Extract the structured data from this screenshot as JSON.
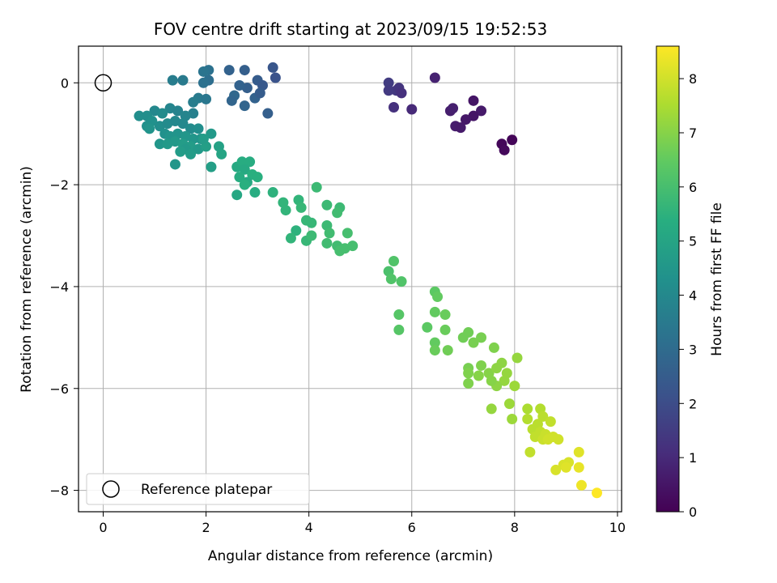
{
  "chart_data": {
    "type": "scatter",
    "title": "FOV centre drift starting at 2023/09/15 19:52:53",
    "xlabel": "Angular distance from reference (arcmin)",
    "ylabel": "Rotation from reference (arcmin)",
    "xlim": [
      -0.48,
      10.08
    ],
    "ylim": [
      -8.42,
      0.72
    ],
    "xticks": [
      0,
      2,
      4,
      6,
      8,
      10
    ],
    "yticks": [
      0,
      -2,
      -4,
      -6,
      -8
    ],
    "grid": true,
    "legend": {
      "position": "lower-left",
      "entries": [
        "Reference platepar"
      ]
    },
    "reference_point": {
      "x": 0,
      "y": 0,
      "label": "Reference platepar"
    },
    "colorbar": {
      "label": "Hours from first FF file",
      "range": [
        0,
        8.6
      ],
      "ticks": [
        0,
        1,
        2,
        3,
        4,
        5,
        6,
        7,
        8
      ],
      "colormap": "viridis"
    },
    "points": [
      {
        "x": 6.45,
        "y": 0.1,
        "h": 0.8
      },
      {
        "x": 5.55,
        "y": 0.0,
        "h": 1.5
      },
      {
        "x": 5.7,
        "y": -0.15,
        "h": 1.4
      },
      {
        "x": 5.75,
        "y": -0.1,
        "h": 1.3
      },
      {
        "x": 5.8,
        "y": -0.2,
        "h": 1.2
      },
      {
        "x": 5.55,
        "y": -0.15,
        "h": 1.45
      },
      {
        "x": 5.65,
        "y": -0.48,
        "h": 1.2
      },
      {
        "x": 6.0,
        "y": -0.52,
        "h": 1.0
      },
      {
        "x": 6.75,
        "y": -0.55,
        "h": 0.7
      },
      {
        "x": 6.8,
        "y": -0.5,
        "h": 0.75
      },
      {
        "x": 7.2,
        "y": -0.35,
        "h": 0.5
      },
      {
        "x": 7.35,
        "y": -0.55,
        "h": 0.6
      },
      {
        "x": 7.2,
        "y": -0.65,
        "h": 0.5
      },
      {
        "x": 7.05,
        "y": -0.72,
        "h": 0.55
      },
      {
        "x": 6.85,
        "y": -0.85,
        "h": 0.65
      },
      {
        "x": 6.95,
        "y": -0.88,
        "h": 0.6
      },
      {
        "x": 7.75,
        "y": -1.2,
        "h": 0.15
      },
      {
        "x": 7.95,
        "y": -1.12,
        "h": 0.1
      },
      {
        "x": 7.8,
        "y": -1.32,
        "h": 0.2
      },
      {
        "x": 2.45,
        "y": 0.25,
        "h": 2.7
      },
      {
        "x": 2.75,
        "y": 0.25,
        "h": 2.6
      },
      {
        "x": 3.3,
        "y": 0.3,
        "h": 2.3
      },
      {
        "x": 3.35,
        "y": 0.1,
        "h": 2.2
      },
      {
        "x": 3.0,
        "y": 0.05,
        "h": 2.5
      },
      {
        "x": 3.1,
        "y": -0.05,
        "h": 2.4
      },
      {
        "x": 2.8,
        "y": -0.1,
        "h": 2.6
      },
      {
        "x": 2.65,
        "y": -0.05,
        "h": 2.7
      },
      {
        "x": 2.55,
        "y": -0.25,
        "h": 2.9
      },
      {
        "x": 2.5,
        "y": -0.35,
        "h": 2.8
      },
      {
        "x": 2.75,
        "y": -0.45,
        "h": 2.8
      },
      {
        "x": 2.95,
        "y": -0.3,
        "h": 2.7
      },
      {
        "x": 3.2,
        "y": -0.6,
        "h": 2.6
      },
      {
        "x": 3.05,
        "y": -0.2,
        "h": 2.5
      },
      {
        "x": 2.05,
        "y": 0.25,
        "h": 3.2
      },
      {
        "x": 1.95,
        "y": 0.22,
        "h": 3.3
      },
      {
        "x": 2.05,
        "y": 0.05,
        "h": 3.1
      },
      {
        "x": 1.95,
        "y": 0.0,
        "h": 3.2
      },
      {
        "x": 1.35,
        "y": 0.05,
        "h": 3.6
      },
      {
        "x": 1.55,
        "y": 0.05,
        "h": 3.5
      },
      {
        "x": 1.85,
        "y": -0.3,
        "h": 3.5
      },
      {
        "x": 2.0,
        "y": -0.32,
        "h": 3.4
      },
      {
        "x": 1.75,
        "y": -0.38,
        "h": 3.6
      },
      {
        "x": 1.3,
        "y": -0.5,
        "h": 3.9
      },
      {
        "x": 1.45,
        "y": -0.55,
        "h": 3.8
      },
      {
        "x": 1.75,
        "y": -0.6,
        "h": 3.7
      },
      {
        "x": 1.6,
        "y": -0.65,
        "h": 3.9
      },
      {
        "x": 1.0,
        "y": -0.55,
        "h": 4.0
      },
      {
        "x": 1.15,
        "y": -0.6,
        "h": 4.1
      },
      {
        "x": 0.7,
        "y": -0.65,
        "h": 4.2
      },
      {
        "x": 0.85,
        "y": -0.65,
        "h": 4.2
      },
      {
        "x": 0.95,
        "y": -0.75,
        "h": 4.3
      },
      {
        "x": 0.85,
        "y": -0.85,
        "h": 4.3
      },
      {
        "x": 1.1,
        "y": -0.85,
        "h": 4.2
      },
      {
        "x": 1.25,
        "y": -0.8,
        "h": 4.1
      },
      {
        "x": 1.4,
        "y": -0.75,
        "h": 4.0
      },
      {
        "x": 1.55,
        "y": -0.8,
        "h": 4.0
      },
      {
        "x": 1.7,
        "y": -0.9,
        "h": 4.1
      },
      {
        "x": 1.85,
        "y": -0.9,
        "h": 4.2
      },
      {
        "x": 0.9,
        "y": -0.9,
        "h": 4.4
      },
      {
        "x": 1.2,
        "y": -1.0,
        "h": 4.3
      },
      {
        "x": 1.3,
        "y": -1.05,
        "h": 4.4
      },
      {
        "x": 1.45,
        "y": -1.0,
        "h": 4.4
      },
      {
        "x": 1.6,
        "y": -1.05,
        "h": 4.5
      },
      {
        "x": 1.75,
        "y": -1.1,
        "h": 4.5
      },
      {
        "x": 1.9,
        "y": -1.1,
        "h": 4.4
      },
      {
        "x": 2.1,
        "y": -1.0,
        "h": 4.6
      },
      {
        "x": 1.1,
        "y": -1.2,
        "h": 4.5
      },
      {
        "x": 1.25,
        "y": -1.2,
        "h": 4.6
      },
      {
        "x": 1.4,
        "y": -1.15,
        "h": 4.6
      },
      {
        "x": 1.55,
        "y": -1.2,
        "h": 4.7
      },
      {
        "x": 1.7,
        "y": -1.25,
        "h": 4.7
      },
      {
        "x": 1.85,
        "y": -1.3,
        "h": 4.6
      },
      {
        "x": 2.0,
        "y": -1.25,
        "h": 4.8
      },
      {
        "x": 1.95,
        "y": -1.1,
        "h": 4.7
      },
      {
        "x": 1.6,
        "y": -1.3,
        "h": 4.6
      },
      {
        "x": 1.5,
        "y": -1.35,
        "h": 4.7
      },
      {
        "x": 1.7,
        "y": -1.4,
        "h": 4.7
      },
      {
        "x": 1.4,
        "y": -1.6,
        "h": 4.5
      },
      {
        "x": 2.25,
        "y": -1.25,
        "h": 4.9
      },
      {
        "x": 2.3,
        "y": -1.4,
        "h": 5.0
      },
      {
        "x": 2.1,
        "y": -1.65,
        "h": 4.8
      },
      {
        "x": 2.6,
        "y": -1.65,
        "h": 5.2
      },
      {
        "x": 2.7,
        "y": -1.55,
        "h": 5.3
      },
      {
        "x": 2.85,
        "y": -1.55,
        "h": 5.3
      },
      {
        "x": 2.75,
        "y": -1.7,
        "h": 5.2
      },
      {
        "x": 2.65,
        "y": -1.85,
        "h": 5.3
      },
      {
        "x": 2.9,
        "y": -1.8,
        "h": 5.4
      },
      {
        "x": 3.0,
        "y": -1.85,
        "h": 5.4
      },
      {
        "x": 2.8,
        "y": -1.95,
        "h": 5.2
      },
      {
        "x": 2.75,
        "y": -2.0,
        "h": 5.4
      },
      {
        "x": 2.95,
        "y": -2.15,
        "h": 5.3
      },
      {
        "x": 2.6,
        "y": -2.2,
        "h": 5.1
      },
      {
        "x": 3.3,
        "y": -2.15,
        "h": 5.5
      },
      {
        "x": 3.5,
        "y": -2.35,
        "h": 5.6
      },
      {
        "x": 3.55,
        "y": -2.5,
        "h": 5.6
      },
      {
        "x": 3.8,
        "y": -2.3,
        "h": 5.6
      },
      {
        "x": 3.85,
        "y": -2.45,
        "h": 5.7
      },
      {
        "x": 4.15,
        "y": -2.05,
        "h": 5.8
      },
      {
        "x": 4.35,
        "y": -2.4,
        "h": 5.8
      },
      {
        "x": 4.6,
        "y": -2.45,
        "h": 5.8
      },
      {
        "x": 4.55,
        "y": -2.55,
        "h": 5.9
      },
      {
        "x": 3.95,
        "y": -2.7,
        "h": 5.7
      },
      {
        "x": 4.05,
        "y": -2.75,
        "h": 5.7
      },
      {
        "x": 4.35,
        "y": -2.8,
        "h": 5.8
      },
      {
        "x": 4.4,
        "y": -2.95,
        "h": 5.9
      },
      {
        "x": 3.75,
        "y": -2.9,
        "h": 5.5
      },
      {
        "x": 3.65,
        "y": -3.05,
        "h": 5.6
      },
      {
        "x": 3.95,
        "y": -3.1,
        "h": 5.7
      },
      {
        "x": 4.05,
        "y": -3.0,
        "h": 5.8
      },
      {
        "x": 4.35,
        "y": -3.15,
        "h": 5.9
      },
      {
        "x": 4.55,
        "y": -3.2,
        "h": 5.9
      },
      {
        "x": 4.6,
        "y": -3.3,
        "h": 6.0
      },
      {
        "x": 4.7,
        "y": -3.25,
        "h": 6.0
      },
      {
        "x": 4.75,
        "y": -2.95,
        "h": 6.0
      },
      {
        "x": 4.85,
        "y": -3.2,
        "h": 6.0
      },
      {
        "x": 5.65,
        "y": -3.5,
        "h": 6.2
      },
      {
        "x": 5.55,
        "y": -3.7,
        "h": 6.1
      },
      {
        "x": 5.6,
        "y": -3.85,
        "h": 6.2
      },
      {
        "x": 5.8,
        "y": -3.9,
        "h": 6.2
      },
      {
        "x": 5.75,
        "y": -4.55,
        "h": 6.3
      },
      {
        "x": 5.75,
        "y": -4.85,
        "h": 6.3
      },
      {
        "x": 6.45,
        "y": -4.1,
        "h": 6.4
      },
      {
        "x": 6.5,
        "y": -4.2,
        "h": 6.5
      },
      {
        "x": 6.45,
        "y": -4.5,
        "h": 6.5
      },
      {
        "x": 6.65,
        "y": -4.55,
        "h": 6.6
      },
      {
        "x": 6.3,
        "y": -4.8,
        "h": 6.4
      },
      {
        "x": 6.65,
        "y": -4.85,
        "h": 6.6
      },
      {
        "x": 6.45,
        "y": -5.1,
        "h": 6.5
      },
      {
        "x": 6.45,
        "y": -5.25,
        "h": 6.6
      },
      {
        "x": 6.7,
        "y": -5.25,
        "h": 6.7
      },
      {
        "x": 7.0,
        "y": -5.0,
        "h": 6.7
      },
      {
        "x": 7.1,
        "y": -4.9,
        "h": 6.7
      },
      {
        "x": 7.2,
        "y": -5.1,
        "h": 6.8
      },
      {
        "x": 7.35,
        "y": -5.0,
        "h": 6.8
      },
      {
        "x": 7.6,
        "y": -5.2,
        "h": 6.9
      },
      {
        "x": 7.35,
        "y": -5.55,
        "h": 6.9
      },
      {
        "x": 7.1,
        "y": -5.6,
        "h": 6.8
      },
      {
        "x": 7.1,
        "y": -5.7,
        "h": 6.9
      },
      {
        "x": 7.3,
        "y": -5.75,
        "h": 7.0
      },
      {
        "x": 7.5,
        "y": -5.7,
        "h": 7.0
      },
      {
        "x": 7.65,
        "y": -5.6,
        "h": 7.1
      },
      {
        "x": 7.75,
        "y": -5.5,
        "h": 7.1
      },
      {
        "x": 7.85,
        "y": -5.7,
        "h": 7.2
      },
      {
        "x": 7.8,
        "y": -5.85,
        "h": 7.2
      },
      {
        "x": 7.65,
        "y": -5.95,
        "h": 7.1
      },
      {
        "x": 7.55,
        "y": -5.85,
        "h": 7.0
      },
      {
        "x": 7.1,
        "y": -5.9,
        "h": 6.9
      },
      {
        "x": 8.0,
        "y": -5.95,
        "h": 7.3
      },
      {
        "x": 8.05,
        "y": -5.4,
        "h": 7.2
      },
      {
        "x": 7.9,
        "y": -6.3,
        "h": 7.3
      },
      {
        "x": 7.55,
        "y": -6.4,
        "h": 7.2
      },
      {
        "x": 7.95,
        "y": -6.6,
        "h": 7.3
      },
      {
        "x": 8.25,
        "y": -6.4,
        "h": 7.5
      },
      {
        "x": 8.5,
        "y": -6.4,
        "h": 7.6
      },
      {
        "x": 8.55,
        "y": -6.55,
        "h": 7.7
      },
      {
        "x": 8.25,
        "y": -6.6,
        "h": 7.6
      },
      {
        "x": 8.45,
        "y": -6.7,
        "h": 7.7
      },
      {
        "x": 8.7,
        "y": -6.65,
        "h": 7.8
      },
      {
        "x": 8.35,
        "y": -6.8,
        "h": 7.7
      },
      {
        "x": 8.5,
        "y": -6.85,
        "h": 7.8
      },
      {
        "x": 8.6,
        "y": -6.9,
        "h": 7.9
      },
      {
        "x": 8.4,
        "y": -6.95,
        "h": 7.8
      },
      {
        "x": 8.55,
        "y": -7.0,
        "h": 7.9
      },
      {
        "x": 8.65,
        "y": -7.0,
        "h": 8.0
      },
      {
        "x": 8.75,
        "y": -6.95,
        "h": 8.0
      },
      {
        "x": 8.85,
        "y": -7.0,
        "h": 8.0
      },
      {
        "x": 8.3,
        "y": -7.25,
        "h": 7.8
      },
      {
        "x": 8.95,
        "y": -7.5,
        "h": 8.1
      },
      {
        "x": 9.05,
        "y": -7.45,
        "h": 8.1
      },
      {
        "x": 8.8,
        "y": -7.6,
        "h": 8.1
      },
      {
        "x": 9.0,
        "y": -7.55,
        "h": 8.2
      },
      {
        "x": 9.25,
        "y": -7.25,
        "h": 8.2
      },
      {
        "x": 9.25,
        "y": -7.55,
        "h": 8.3
      },
      {
        "x": 9.3,
        "y": -7.9,
        "h": 8.4
      },
      {
        "x": 9.6,
        "y": -8.05,
        "h": 8.6
      }
    ]
  }
}
